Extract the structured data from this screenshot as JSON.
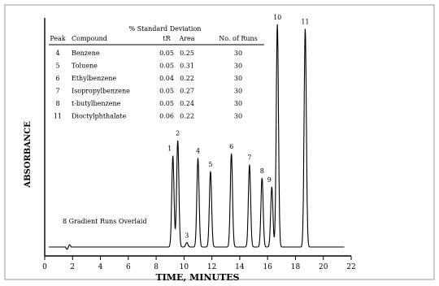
{
  "chart_data": {
    "type": "line",
    "xlabel": "TIME, MINUTES",
    "ylabel": "ABSORBANCE",
    "xlim": [
      0,
      22
    ],
    "x_ticks": [
      0,
      2,
      4,
      6,
      8,
      10,
      12,
      14,
      16,
      18,
      20,
      22
    ],
    "grid": false,
    "annotation": "8 Gradient Runs Overlaid",
    "peaks": [
      {
        "label": "1",
        "time": 9.2,
        "height": 0.41
      },
      {
        "label": "2",
        "time": 9.55,
        "height": 0.48
      },
      {
        "label": "3",
        "time": 10.2,
        "height": 0.02
      },
      {
        "label": "4",
        "time": 11.0,
        "height": 0.4
      },
      {
        "label": "5",
        "time": 11.9,
        "height": 0.34
      },
      {
        "label": "6",
        "time": 13.4,
        "height": 0.42
      },
      {
        "label": "7",
        "time": 14.7,
        "height": 0.37
      },
      {
        "label": "8",
        "time": 15.6,
        "height": 0.31
      },
      {
        "label": "9",
        "time": 16.3,
        "height": 0.27
      },
      {
        "label": "10",
        "time": 16.7,
        "height": 1.0
      },
      {
        "label": "11",
        "time": 18.7,
        "height": 0.98
      }
    ],
    "table": {
      "group_header": "% Standard Deviation",
      "columns": [
        "Peak",
        "Compound",
        "tR",
        "Area",
        "No. of Runs"
      ],
      "rows": [
        [
          "4",
          "Benzene",
          "0.05",
          "0.25",
          "30"
        ],
        [
          "5",
          "Toluene",
          "0.05",
          "0.31",
          "30"
        ],
        [
          "6",
          "Ethylbenzene",
          "0.04",
          "0.22",
          "30"
        ],
        [
          "7",
          "Isopropylbenzene",
          "0.05",
          "0.27",
          "30"
        ],
        [
          "8",
          "t-butylbenzene",
          "0.05",
          "0.24",
          "30"
        ],
        [
          "11",
          "Dioctylphthalate",
          "0.06",
          "0.22",
          "30"
        ]
      ]
    }
  }
}
